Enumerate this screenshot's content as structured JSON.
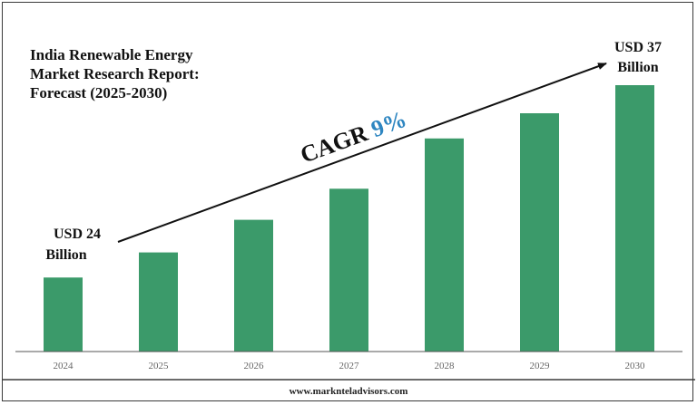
{
  "title_lines": [
    "India Renewable Energy",
    "Market Research Report:",
    "Forecast (2025-2030)"
  ],
  "source": "www.marknteladvisors.com",
  "annotations": {
    "start_label": [
      "USD 24",
      "Billion"
    ],
    "end_label": [
      "USD 37",
      "Billion"
    ],
    "cagr_text": "CAGR ",
    "cagr_value": "9%"
  },
  "colors": {
    "bar": "#3b9a6a",
    "cagr_value": "#2e86c1",
    "axis": "#666666",
    "text": "#111111"
  },
  "chart_data": {
    "type": "bar",
    "title": "India Renewable Energy Market Research Report: Forecast (2025-2030)",
    "categories": [
      "2024",
      "2025",
      "2026",
      "2027",
      "2028",
      "2029",
      "2030"
    ],
    "values": [
      24,
      25.7,
      27.9,
      30,
      33.4,
      35.1,
      37
    ],
    "value_labels": {
      "2024": "USD 24 Billion",
      "2030": "USD 37 Billion"
    },
    "ylim": [
      19,
      37
    ],
    "ylabel": "",
    "xlabel": "",
    "grid": false,
    "legend": "none"
  }
}
